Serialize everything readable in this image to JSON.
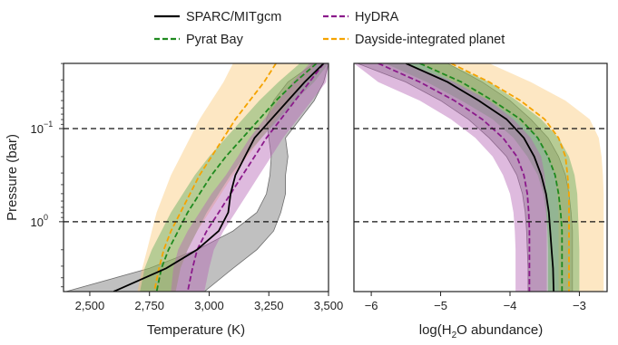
{
  "legend": [
    {
      "label": "SPARC/MITgcm",
      "color": "#000000",
      "dashed": false
    },
    {
      "label": "HyDRA",
      "color": "#8b1a8b",
      "dashed": true
    },
    {
      "label": "Pyrat Bay",
      "color": "#1f8a1f",
      "dashed": true
    },
    {
      "label": "Dayside-integrated planet",
      "color": "#f5a300",
      "dashed": true
    }
  ],
  "colors": {
    "sparc_band": "#8c8c8c",
    "hydra_band": "#b566b5",
    "pyrat_band": "#55a855",
    "dayside_band": "#fbc46a",
    "overlap_band": "#c86a3c"
  },
  "chart_data": [
    {
      "type": "line",
      "xlabel": "Temperature (K)",
      "ylabel": "Pressure (bar)",
      "xlim": [
        2390,
        3500
      ],
      "xticks": [
        2500,
        2750,
        3000,
        3250,
        3500
      ],
      "xtick_labels": [
        "2,500",
        "2,750",
        "3,000",
        "3,250",
        "3,500"
      ],
      "ylog_range": [
        -1.7,
        0.75
      ],
      "yaxis_inverted": true,
      "yscale": "log",
      "yticks": [
        -1,
        0
      ],
      "ytick_labels": [
        "10",
        "10"
      ],
      "ytick_exponents": [
        "−1",
        "0"
      ],
      "reference_lines": [
        0.1,
        1.0
      ],
      "series": [
        {
          "name": "SPARC/MITgcm",
          "style": "solid",
          "color": "#000000",
          "logp": [
            -1.7,
            -1.5,
            -1.3,
            -1.1,
            -0.9,
            -0.7,
            -0.5,
            -0.3,
            -0.1,
            0.1,
            0.3,
            0.5,
            0.75
          ],
          "values": [
            3480,
            3400,
            3330,
            3260,
            3190,
            3150,
            3110,
            3090,
            3080,
            3040,
            2950,
            2820,
            2600
          ],
          "band_low": [
            3440,
            3330,
            3270,
            3240,
            3250,
            3260,
            3255,
            3240,
            3200,
            3100,
            2950,
            2750,
            2400
          ],
          "band_high": [
            3500,
            3480,
            3440,
            3380,
            3320,
            3330,
            3320,
            3320,
            3300,
            3270,
            3200,
            3100,
            2980
          ]
        },
        {
          "name": "HyDRA",
          "style": "dashed",
          "color": "#8b1a8b",
          "logp": [
            -1.7,
            -1.5,
            -1.3,
            -1.1,
            -0.9,
            -0.7,
            -0.5,
            -0.3,
            -0.1,
            0.1,
            0.3,
            0.5,
            0.75
          ],
          "values": [
            3480,
            3420,
            3360,
            3300,
            3240,
            3190,
            3140,
            3090,
            3040,
            2990,
            2950,
            2930,
            2910
          ],
          "band_low": [
            3420,
            3350,
            3290,
            3230,
            3170,
            3120,
            3070,
            3010,
            2960,
            2910,
            2870,
            2850,
            2840
          ],
          "band_high": [
            3500,
            3490,
            3430,
            3370,
            3310,
            3260,
            3210,
            3160,
            3110,
            3060,
            3020,
            3000,
            2980
          ]
        },
        {
          "name": "Pyrat Bay",
          "style": "dashed",
          "color": "#1f8a1f",
          "logp": [
            -1.7,
            -1.5,
            -1.3,
            -1.1,
            -0.9,
            -0.7,
            -0.5,
            -0.3,
            -0.1,
            0.1,
            0.3,
            0.5,
            0.75
          ],
          "values": [
            3450,
            3360,
            3280,
            3210,
            3140,
            3070,
            3010,
            2960,
            2910,
            2870,
            2830,
            2800,
            2780
          ],
          "band_low": [
            3380,
            3290,
            3210,
            3140,
            3070,
            3000,
            2940,
            2890,
            2840,
            2800,
            2760,
            2730,
            2710
          ],
          "band_high": [
            3500,
            3440,
            3360,
            3290,
            3220,
            3150,
            3090,
            3040,
            2990,
            2950,
            2910,
            2880,
            2860
          ]
        },
        {
          "name": "Dayside-integrated planet",
          "style": "dashed",
          "color": "#f5a300",
          "logp": [
            -1.7,
            -1.5,
            -1.3,
            -1.1,
            -0.9,
            -0.7,
            -0.5,
            -0.3,
            -0.1,
            0.1,
            0.3,
            0.5,
            0.75
          ],
          "values": [
            3280,
            3230,
            3170,
            3110,
            3060,
            3010,
            2960,
            2920,
            2880,
            2840,
            2810,
            2790,
            2770
          ],
          "band_low": [
            3100,
            3060,
            3010,
            2960,
            2920,
            2880,
            2840,
            2810,
            2780,
            2760,
            2740,
            2720,
            2700
          ],
          "band_high": [
            3450,
            3400,
            3340,
            3280,
            3220,
            3160,
            3100,
            3050,
            3000,
            2950,
            2910,
            2880,
            2860
          ]
        }
      ]
    },
    {
      "type": "line",
      "xlabel_prefix": "log(H",
      "xlabel_sub": "2",
      "xlabel_suffix": "O abundance)",
      "xlim": [
        -6.25,
        -2.6
      ],
      "xticks": [
        -6,
        -5,
        -4,
        -3
      ],
      "xtick_labels": [
        "−6",
        "−5",
        "−4",
        "−3"
      ],
      "ylog_range": [
        -1.7,
        0.75
      ],
      "yaxis_inverted": true,
      "reference_lines": [
        0.1,
        1.0
      ],
      "series": [
        {
          "name": "SPARC/MITgcm",
          "style": "solid",
          "color": "#000000",
          "logp": [
            -1.7,
            -1.5,
            -1.3,
            -1.1,
            -0.9,
            -0.7,
            -0.5,
            -0.3,
            -0.1,
            0.1,
            0.3,
            0.5,
            0.75
          ],
          "values": [
            -5.5,
            -4.9,
            -4.45,
            -4.05,
            -3.8,
            -3.65,
            -3.55,
            -3.48,
            -3.44,
            -3.42,
            -3.4,
            -3.38,
            -3.37
          ],
          "band_low": [
            -6.2,
            -5.5,
            -5.0,
            -4.6,
            -4.3,
            -4.05,
            -3.9,
            -3.82,
            -3.78,
            -3.76,
            -3.75,
            -3.74,
            -3.74
          ],
          "band_high": [
            -4.9,
            -4.4,
            -4.0,
            -3.7,
            -3.45,
            -3.3,
            -3.2,
            -3.15,
            -3.12,
            -3.1,
            -3.1,
            -3.1,
            -3.1
          ]
        },
        {
          "name": "HyDRA",
          "style": "dashed",
          "color": "#8b1a8b",
          "logp": [
            -1.7,
            -1.5,
            -1.3,
            -1.1,
            -0.9,
            -0.7,
            -0.5,
            -0.3,
            -0.1,
            0.1,
            0.3,
            0.5,
            0.75
          ],
          "values": [
            -5.9,
            -5.3,
            -4.8,
            -4.4,
            -4.1,
            -3.9,
            -3.8,
            -3.75,
            -3.73,
            -3.72,
            -3.72,
            -3.72,
            -3.72
          ],
          "band_low": [
            -6.25,
            -5.9,
            -5.3,
            -4.85,
            -4.5,
            -4.25,
            -4.1,
            -4.0,
            -3.95,
            -3.93,
            -3.92,
            -3.92,
            -3.92
          ],
          "band_high": [
            -5.5,
            -4.8,
            -4.3,
            -3.95,
            -3.7,
            -3.55,
            -3.5,
            -3.48,
            -3.47,
            -3.47,
            -3.47,
            -3.47,
            -3.47
          ]
        },
        {
          "name": "Pyrat Bay",
          "style": "dashed",
          "color": "#1f8a1f",
          "logp": [
            -1.7,
            -1.5,
            -1.3,
            -1.1,
            -0.9,
            -0.7,
            -0.5,
            -0.3,
            -0.1,
            0.1,
            0.3,
            0.5,
            0.75
          ],
          "values": [
            -5.3,
            -4.7,
            -4.25,
            -3.85,
            -3.6,
            -3.45,
            -3.35,
            -3.3,
            -3.27,
            -3.25,
            -3.25,
            -3.25,
            -3.25
          ],
          "band_low": [
            -5.8,
            -5.2,
            -4.7,
            -4.25,
            -3.95,
            -3.75,
            -3.6,
            -3.52,
            -3.48,
            -3.46,
            -3.45,
            -3.45,
            -3.45
          ],
          "band_high": [
            -4.9,
            -4.3,
            -3.9,
            -3.55,
            -3.3,
            -3.15,
            -3.07,
            -3.03,
            -3.02,
            -3.01,
            -3.0,
            -3.0,
            -3.0
          ]
        },
        {
          "name": "Dayside-integrated planet",
          "style": "dashed",
          "color": "#f5a300",
          "logp": [
            -1.7,
            -1.5,
            -1.3,
            -1.1,
            -0.9,
            -0.7,
            -0.5,
            -0.3,
            -0.1,
            0.1,
            0.3,
            0.5,
            0.75
          ],
          "values": [
            -4.85,
            -4.3,
            -3.85,
            -3.5,
            -3.3,
            -3.2,
            -3.17,
            -3.15,
            -3.15,
            -3.15,
            -3.15,
            -3.15,
            -3.15
          ],
          "band_low": [
            -5.3,
            -4.8,
            -4.3,
            -3.9,
            -3.6,
            -3.45,
            -3.35,
            -3.32,
            -3.3,
            -3.3,
            -3.3,
            -3.3,
            -3.3
          ],
          "band_high": [
            -4.3,
            -3.7,
            -3.2,
            -2.85,
            -2.72,
            -2.68,
            -2.66,
            -2.65,
            -2.65,
            -2.65,
            -2.65,
            -2.65,
            -2.65
          ]
        }
      ]
    }
  ]
}
